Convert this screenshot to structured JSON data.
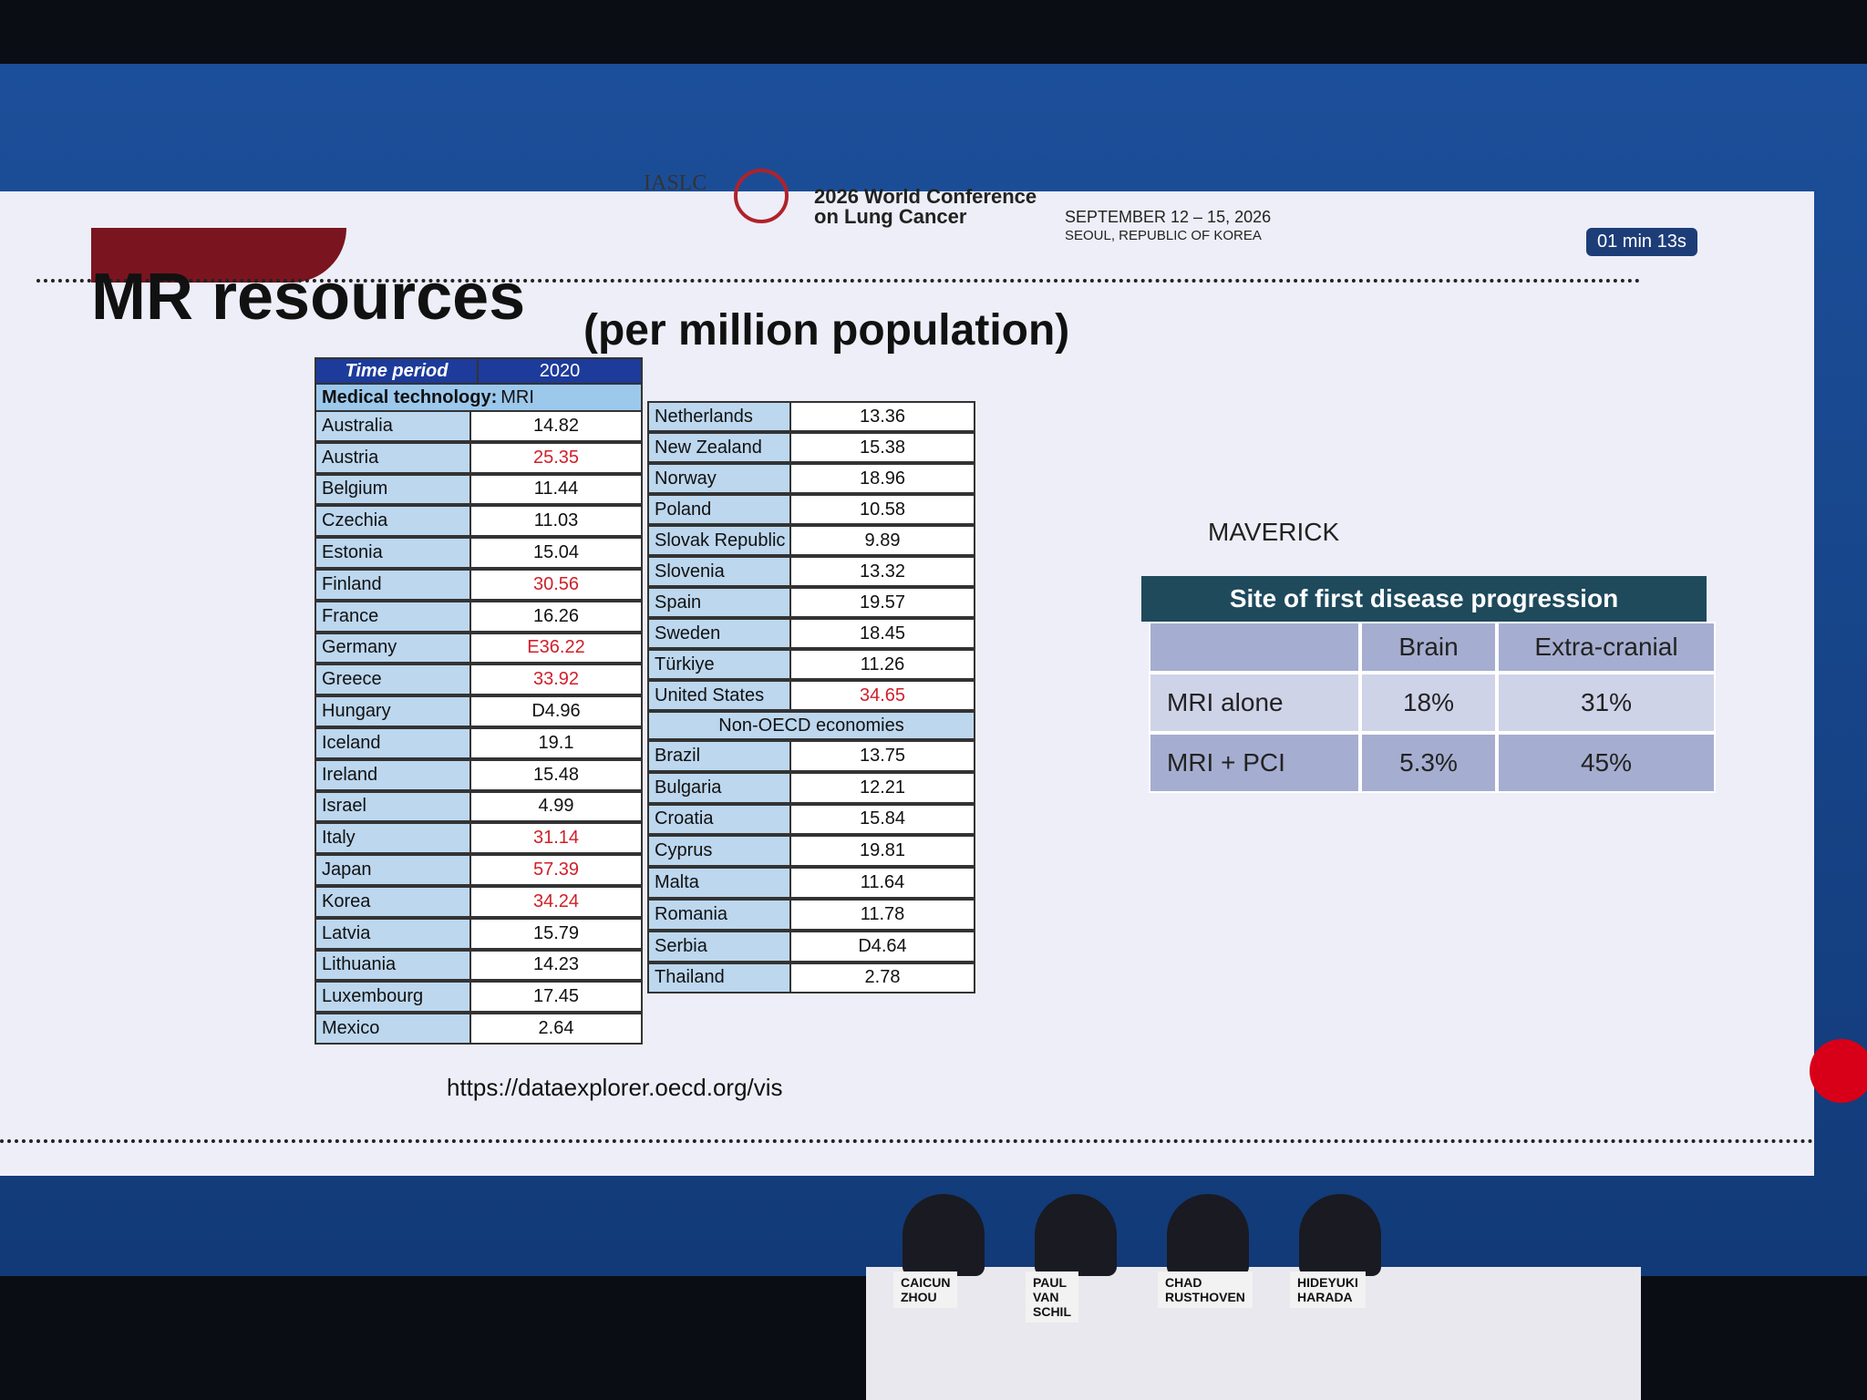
{
  "header": {
    "org": "IASLC",
    "conference": "2026 World Conference on Lung Cancer",
    "dates": "SEPTEMBER 12 – 15, 2026",
    "location": "SEOUL, REPUBLIC OF KOREA"
  },
  "timer": "01 min 13s",
  "slide": {
    "title": "MR resources",
    "subtitle": "(per million population)",
    "url": "https://dataexplorer.oecd.org/vis"
  },
  "oecd_table": {
    "time_period_label": "Time period",
    "year": "2020",
    "technology_label": "Medical technology:",
    "technology": "MRI",
    "rows": [
      {
        "country": "Australia",
        "value": "14.82"
      },
      {
        "country": "Austria",
        "value": "25.35",
        "highlight": true
      },
      {
        "country": "Belgium",
        "value": "11.44"
      },
      {
        "country": "Czechia",
        "value": "11.03"
      },
      {
        "country": "Estonia",
        "value": "15.04"
      },
      {
        "country": "Finland",
        "value": "30.56",
        "highlight": true
      },
      {
        "country": "France",
        "value": "16.26"
      },
      {
        "country": "Germany",
        "value": "E36.22",
        "highlight": true
      },
      {
        "country": "Greece",
        "value": "33.92",
        "highlight": true
      },
      {
        "country": "Hungary",
        "value": "D4.96"
      },
      {
        "country": "Iceland",
        "value": "19.1"
      },
      {
        "country": "Ireland",
        "value": "15.48"
      },
      {
        "country": "Israel",
        "value": "4.99"
      },
      {
        "country": "Italy",
        "value": "31.14",
        "highlight": true
      },
      {
        "country": "Japan",
        "value": "57.39",
        "highlight": true
      },
      {
        "country": "Korea",
        "value": "34.24",
        "highlight": true
      },
      {
        "country": "Latvia",
        "value": "15.79"
      },
      {
        "country": "Lithuania",
        "value": "14.23"
      },
      {
        "country": "Luxembourg",
        "value": "17.45"
      },
      {
        "country": "Mexico",
        "value": "2.64"
      }
    ],
    "rows_right": [
      {
        "country": "Netherlands",
        "value": "13.36"
      },
      {
        "country": "New Zealand",
        "value": "15.38"
      },
      {
        "country": "Norway",
        "value": "18.96"
      },
      {
        "country": "Poland",
        "value": "10.58"
      },
      {
        "country": "Slovak Republic",
        "value": "9.89"
      },
      {
        "country": "Slovenia",
        "value": "13.32"
      },
      {
        "country": "Spain",
        "value": "19.57"
      },
      {
        "country": "Sweden",
        "value": "18.45"
      },
      {
        "country": "Türkiye",
        "value": "11.26"
      },
      {
        "country": "United States",
        "value": "34.65",
        "highlight": true
      }
    ],
    "section_label": "Non-OECD economies",
    "rows_non_oecd": [
      {
        "country": "Brazil",
        "value": "13.75"
      },
      {
        "country": "Bulgaria",
        "value": "12.21"
      },
      {
        "country": "Croatia",
        "value": "15.84"
      },
      {
        "country": "Cyprus",
        "value": "19.81"
      },
      {
        "country": "Malta",
        "value": "11.64"
      },
      {
        "country": "Romania",
        "value": "11.78"
      },
      {
        "country": "Serbia",
        "value": "D4.64"
      },
      {
        "country": "Thailand",
        "value": "2.78"
      }
    ]
  },
  "maverick": {
    "label": "MAVERICK",
    "title": "Site of first disease progression",
    "columns": [
      "Brain",
      "Extra-cranial"
    ],
    "rows": [
      {
        "label": "MRI alone",
        "values": [
          "18%",
          "31%"
        ]
      },
      {
        "label": "MRI + PCI",
        "values": [
          "5.3%",
          "45%"
        ]
      }
    ]
  },
  "panel": [
    "CAICUN ZHOU",
    "PAUL VAN SCHIL",
    "CHAD RUSTHOVEN",
    "HIDEYUKI HARADA"
  ]
}
